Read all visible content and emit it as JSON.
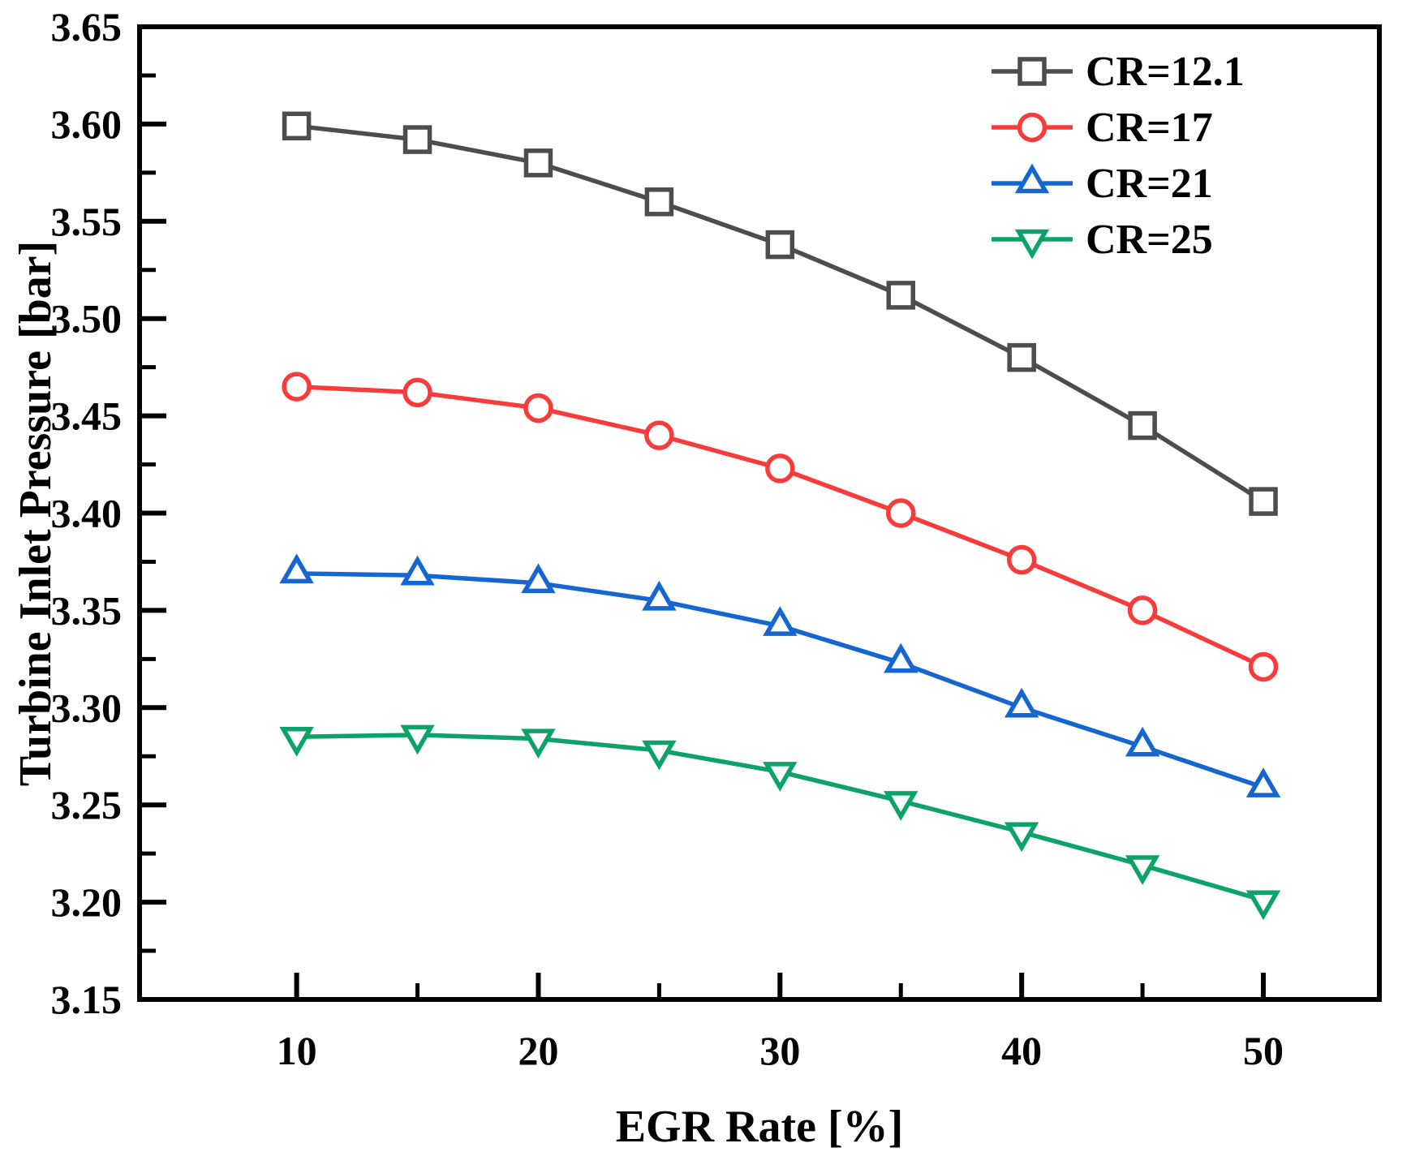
{
  "chart_data": {
    "type": "line",
    "title": "",
    "xlabel": "EGR Rate [%]",
    "ylabel": "Turbine Inlet Pressure [bar]",
    "xlim": [
      3.5,
      54.8
    ],
    "ylim": [
      3.15,
      3.65
    ],
    "grid": false,
    "legend_position": "top-right-inside",
    "x": [
      10,
      15,
      20,
      25,
      30,
      35,
      40,
      45,
      50
    ],
    "x_major_ticks": [
      10,
      20,
      30,
      40,
      50
    ],
    "x_tick_labels": [
      "10",
      "20",
      "30",
      "40",
      "50"
    ],
    "x_minor_ticks": [
      15,
      25,
      35,
      45
    ],
    "y_major_ticks": [
      3.15,
      3.2,
      3.25,
      3.3,
      3.35,
      3.4,
      3.45,
      3.5,
      3.55,
      3.6,
      3.65
    ],
    "y_tick_labels": [
      "3.15",
      "3.20",
      "3.25",
      "3.30",
      "3.35",
      "3.40",
      "3.45",
      "3.50",
      "3.55",
      "3.60",
      "3.65"
    ],
    "y_minor_ticks": [
      3.175,
      3.225,
      3.275,
      3.325,
      3.375,
      3.425,
      3.475,
      3.525,
      3.575,
      3.625
    ],
    "series": [
      {
        "name": "CR=12.1",
        "marker": "square",
        "color": "#4d4d4d",
        "values": [
          3.599,
          3.592,
          3.58,
          3.56,
          3.538,
          3.512,
          3.48,
          3.445,
          3.406
        ]
      },
      {
        "name": "CR=17",
        "marker": "circle",
        "color": "#f93b3b",
        "values": [
          3.465,
          3.462,
          3.454,
          3.44,
          3.423,
          3.4,
          3.376,
          3.35,
          3.321
        ]
      },
      {
        "name": "CR=21",
        "marker": "triangle-up",
        "color": "#1666d2",
        "values": [
          3.369,
          3.368,
          3.364,
          3.355,
          3.342,
          3.323,
          3.3,
          3.28,
          3.259
        ]
      },
      {
        "name": "CR=25",
        "marker": "triangle-down",
        "color": "#0da368",
        "values": [
          3.285,
          3.286,
          3.284,
          3.278,
          3.267,
          3.252,
          3.236,
          3.219,
          3.201
        ]
      }
    ]
  }
}
